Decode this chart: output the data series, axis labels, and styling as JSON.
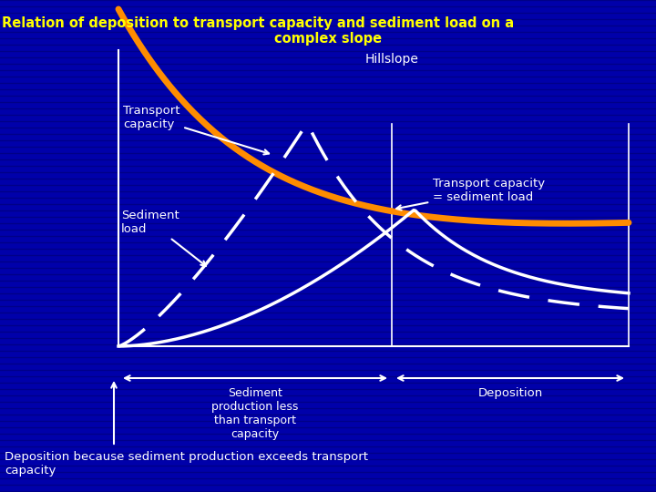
{
  "title_line1": "Relation of deposition to transport capacity and sediment load on a",
  "title_line2": "complex slope",
  "title_line3": "Hillslope",
  "bg_color": "#0000AA",
  "stripe_color": "#000088",
  "title_color": "#FFFF00",
  "hillslope_color": "#FF8C00",
  "curve_color": "#FFFFFF",
  "label_color": "#FFFFFF",
  "transport_capacity_label": "Transport\ncapacity",
  "sediment_load_label": "Sediment\nload",
  "tc_eq_sl_label": "Transport capacity\n= sediment load",
  "sed_prod_label": "Sediment\nproduction less\nthan transport\ncapacity",
  "deposition_label": "Deposition",
  "bottom_label": "Deposition because sediment production exceeds transport\ncapacity"
}
